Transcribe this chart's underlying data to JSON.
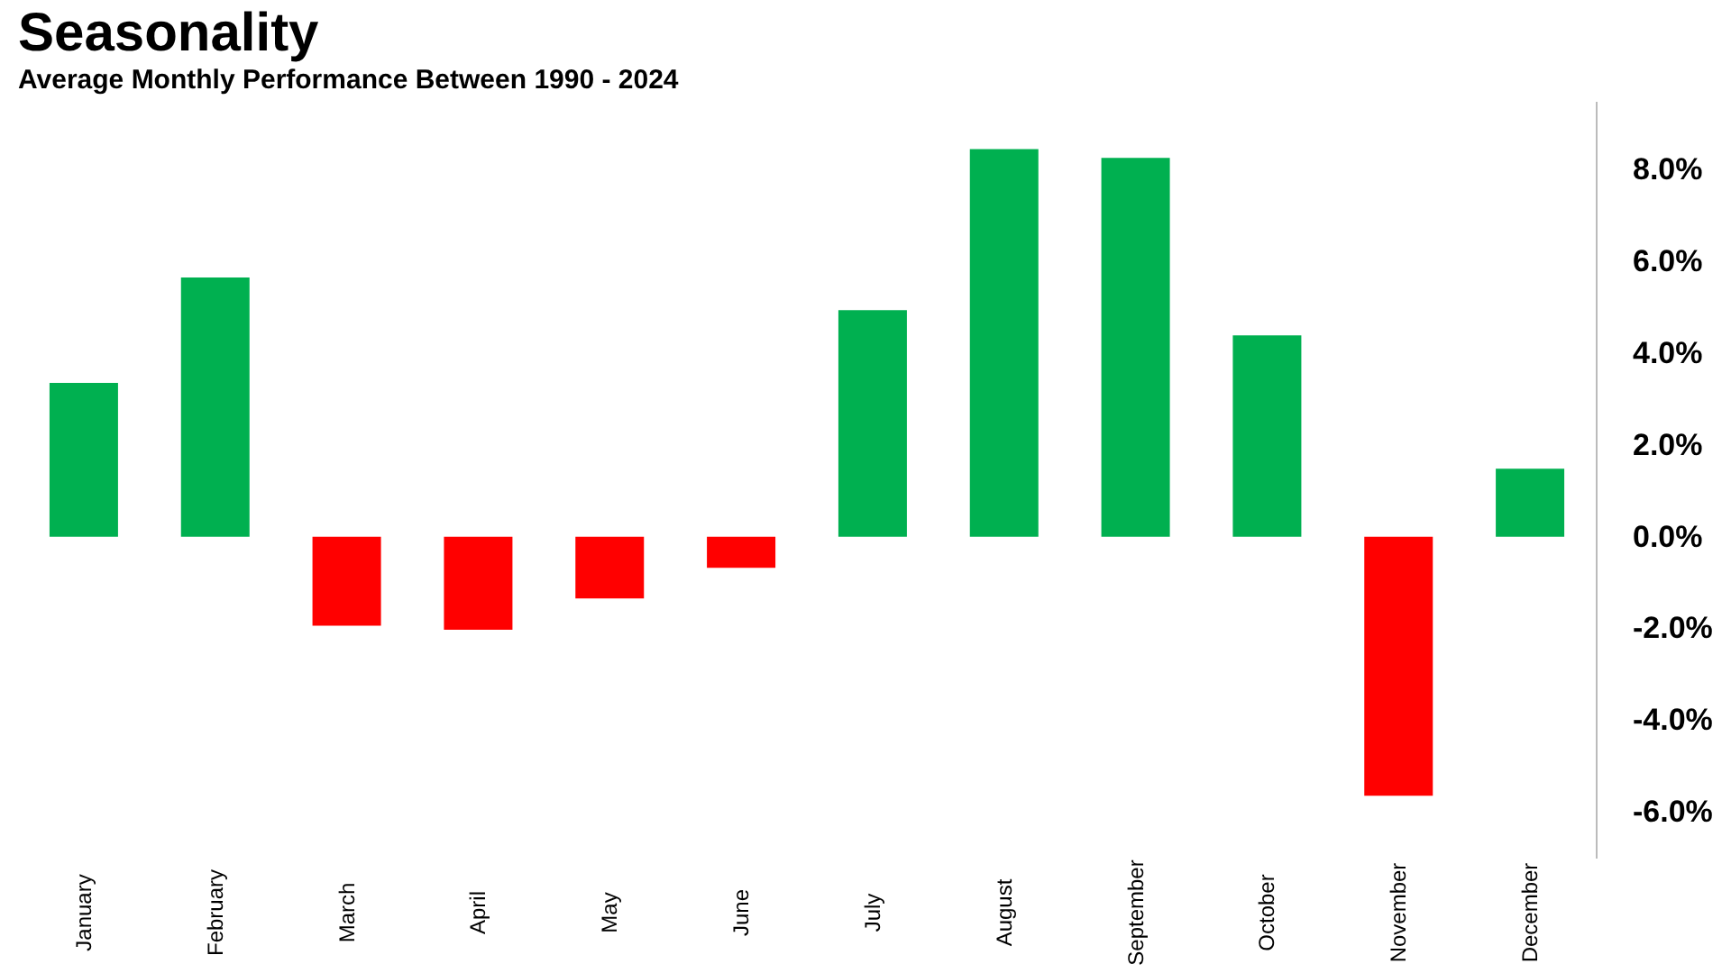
{
  "chart_data": {
    "type": "bar",
    "title": "Seasonality",
    "subtitle": "Average Monthly Performance Between 1990 - 2024",
    "categories": [
      "January",
      "February",
      "March",
      "April",
      "May",
      "June",
      "July",
      "August",
      "September",
      "October",
      "November",
      "December"
    ],
    "values": [
      3.35,
      5.65,
      -1.94,
      -2.03,
      -1.35,
      -0.68,
      4.94,
      8.45,
      8.26,
      4.39,
      -5.65,
      1.48
    ],
    "colors": [
      "#00b050",
      "#00b050",
      "#ff0000",
      "#ff0000",
      "#ff0000",
      "#ff0000",
      "#00b050",
      "#00b050",
      "#00b050",
      "#00b050",
      "#ff0000",
      "#00b050"
    ],
    "ylim": [
      -7,
      9.5
    ],
    "yticks": [
      {
        "value": -6,
        "label": "-6.0%"
      },
      {
        "value": -4,
        "label": "-4.0%"
      },
      {
        "value": -2,
        "label": "-2.0%"
      },
      {
        "value": 0,
        "label": "0.0%"
      },
      {
        "value": 2,
        "label": "2.0%"
      },
      {
        "value": 4,
        "label": "4.0%"
      },
      {
        "value": 6,
        "label": "6.0%"
      },
      {
        "value": 8,
        "label": "8.0%"
      }
    ],
    "grid": false
  }
}
